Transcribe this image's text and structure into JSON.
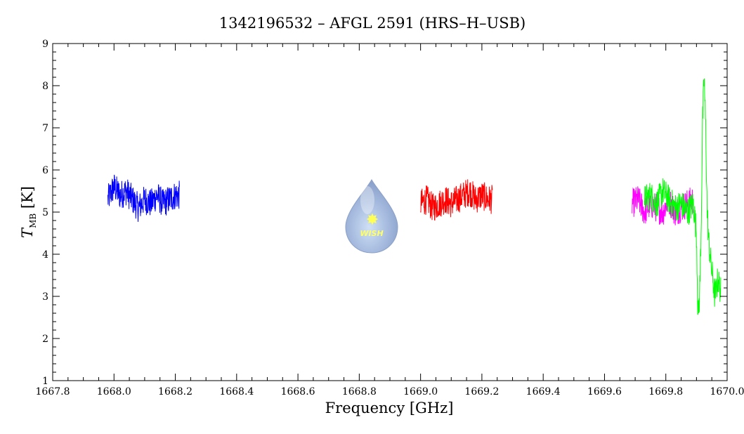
{
  "chart_data": {
    "type": "line",
    "title": "1342196532 – AFGL 2591 (HRS–H–USB)",
    "xlabel": "Frequency [GHz]",
    "ylabel_main": "T",
    "ylabel_sub": "MB",
    "ylabel_unit": " [K]",
    "xlim": [
      1667.8,
      1670.0
    ],
    "ylim": [
      1,
      9
    ],
    "x_major_ticks": [
      1667.8,
      1668.0,
      1668.2,
      1668.4,
      1668.6,
      1668.8,
      1669.0,
      1669.2,
      1669.4,
      1669.6,
      1669.8,
      1670.0
    ],
    "x_tick_labels": [
      "1667.8",
      "1668.0",
      "1668.2",
      "1668.4",
      "1668.6",
      "1668.8",
      "1669.0",
      "1669.2",
      "1669.4",
      "1669.6",
      "1669.8",
      "1670.0"
    ],
    "y_major_ticks": [
      1,
      2,
      3,
      4,
      5,
      6,
      7,
      8,
      9
    ],
    "y_tick_labels": [
      "1",
      "2",
      "3",
      "4",
      "5",
      "6",
      "7",
      "8",
      "9"
    ],
    "grid": false,
    "series": [
      {
        "color": "#0000ff",
        "x": [
          1667.98,
          1668.0,
          1668.02,
          1668.04,
          1668.06,
          1668.08,
          1668.1,
          1668.12,
          1668.14,
          1668.16,
          1668.18,
          1668.2,
          1668.215
        ],
        "y": [
          5.3,
          5.6,
          5.4,
          5.5,
          5.3,
          5.1,
          5.3,
          5.2,
          5.4,
          5.2,
          5.3,
          5.4,
          5.4
        ]
      },
      {
        "color": "#ff0000",
        "x": [
          1669.0,
          1669.02,
          1669.04,
          1669.06,
          1669.08,
          1669.1,
          1669.12,
          1669.14,
          1669.16,
          1669.18,
          1669.2,
          1669.22,
          1669.235
        ],
        "y": [
          5.2,
          5.3,
          5.1,
          5.2,
          5.3,
          5.2,
          5.3,
          5.4,
          5.5,
          5.3,
          5.4,
          5.3,
          5.3
        ]
      },
      {
        "color": "#ff00ff",
        "x": [
          1669.69,
          1669.71,
          1669.73,
          1669.75,
          1669.77,
          1669.79,
          1669.81,
          1669.83,
          1669.85,
          1669.87,
          1669.89
        ],
        "y": [
          5.2,
          5.3,
          5.0,
          5.2,
          5.1,
          5.0,
          5.3,
          5.0,
          5.1,
          5.2,
          5.3
        ]
      },
      {
        "color": "#00ff00",
        "x": [
          1669.73,
          1669.75,
          1669.77,
          1669.79,
          1669.81,
          1669.83,
          1669.85,
          1669.87,
          1669.89,
          1669.9,
          1669.905,
          1669.91,
          1669.915,
          1669.92,
          1669.925,
          1669.93,
          1669.935,
          1669.94,
          1669.95,
          1669.96,
          1669.97,
          1669.98
        ],
        "y": [
          5.3,
          5.4,
          5.2,
          5.5,
          5.3,
          5.1,
          5.2,
          5.0,
          5.2,
          4.5,
          2.5,
          3.0,
          4.5,
          7.2,
          8.2,
          7.0,
          5.0,
          4.3,
          3.6,
          3.0,
          3.4,
          3.1
        ]
      }
    ]
  },
  "logo": {
    "text": "WISH",
    "colors": {
      "drop": "#9db2d6",
      "drop_edge": "#8aa0c8",
      "star": "#ffff55"
    }
  }
}
